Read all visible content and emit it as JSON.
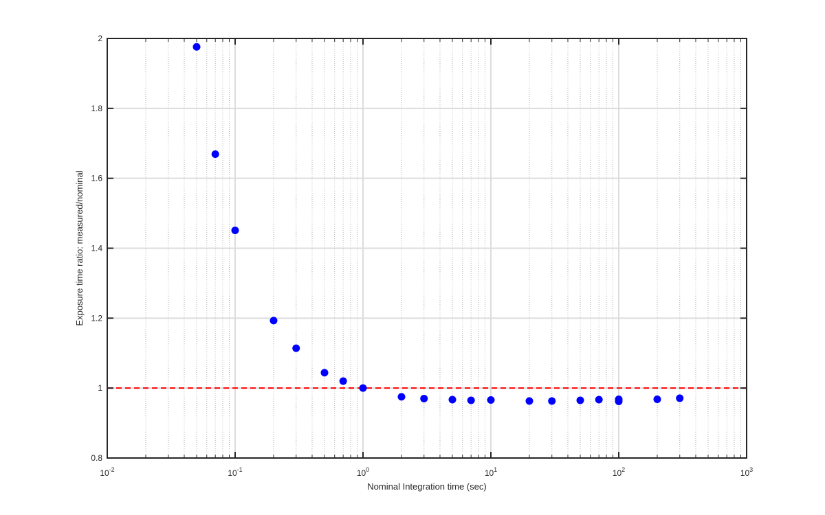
{
  "chart_data": {
    "type": "scatter",
    "title": "",
    "xlabel": "Nominal Integration time (sec)",
    "ylabel": "Exposure time ratio: measured/nominal",
    "xscale": "log",
    "xlim": [
      0.01,
      1000
    ],
    "ylim": [
      0.8,
      2
    ],
    "grid": true,
    "x_ticks": [
      0.01,
      0.1,
      1,
      10,
      100,
      1000
    ],
    "x_tick_labels": [
      {
        "base": "10",
        "exp": "-2"
      },
      {
        "base": "10",
        "exp": "-1"
      },
      {
        "base": "10",
        "exp": "0"
      },
      {
        "base": "10",
        "exp": "1"
      },
      {
        "base": "10",
        "exp": "2"
      },
      {
        "base": "10",
        "exp": "3"
      }
    ],
    "y_ticks": [
      0.8,
      1,
      1.2,
      1.4,
      1.6,
      1.8,
      2
    ],
    "y_tick_labels": [
      "0.8",
      "1",
      "1.2",
      "1.4",
      "1.6",
      "1.8",
      "2"
    ],
    "series": [
      {
        "color": "#0000ff",
        "marker": "circle",
        "x": [
          0.05,
          0.07,
          0.1,
          0.2,
          0.3,
          0.5,
          0.7,
          1,
          2,
          3,
          5,
          7,
          10,
          20,
          30,
          50,
          70,
          100,
          100,
          200,
          300
        ],
        "y": [
          1.976,
          1.669,
          1.451,
          1.193,
          1.114,
          1.044,
          1.02,
          1.0,
          0.975,
          0.97,
          0.967,
          0.965,
          0.966,
          0.963,
          0.963,
          0.965,
          0.967,
          0.968,
          0.962,
          0.968,
          0.971
        ]
      }
    ],
    "reference_line": {
      "y": 1,
      "color": "#ff0000",
      "style": "dashed"
    }
  }
}
